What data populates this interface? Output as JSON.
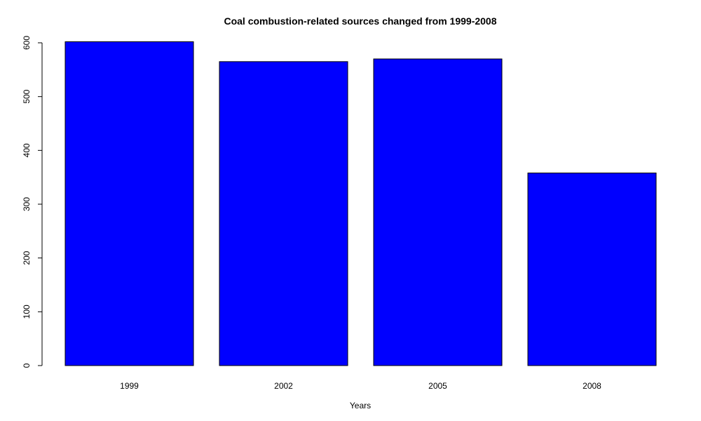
{
  "chart_data": {
    "type": "bar",
    "title": "Coal combustion-related sources changed from 1999-2008",
    "xlabel": "Years",
    "ylabel": "",
    "categories": [
      "1999",
      "2002",
      "2005",
      "2008"
    ],
    "values": [
      602,
      565,
      570,
      358
    ],
    "ylim": [
      0,
      600
    ],
    "yticks": [
      0,
      100,
      200,
      300,
      400,
      500,
      600
    ],
    "bar_color": "#0000ff",
    "grid": false,
    "legend": "none"
  }
}
